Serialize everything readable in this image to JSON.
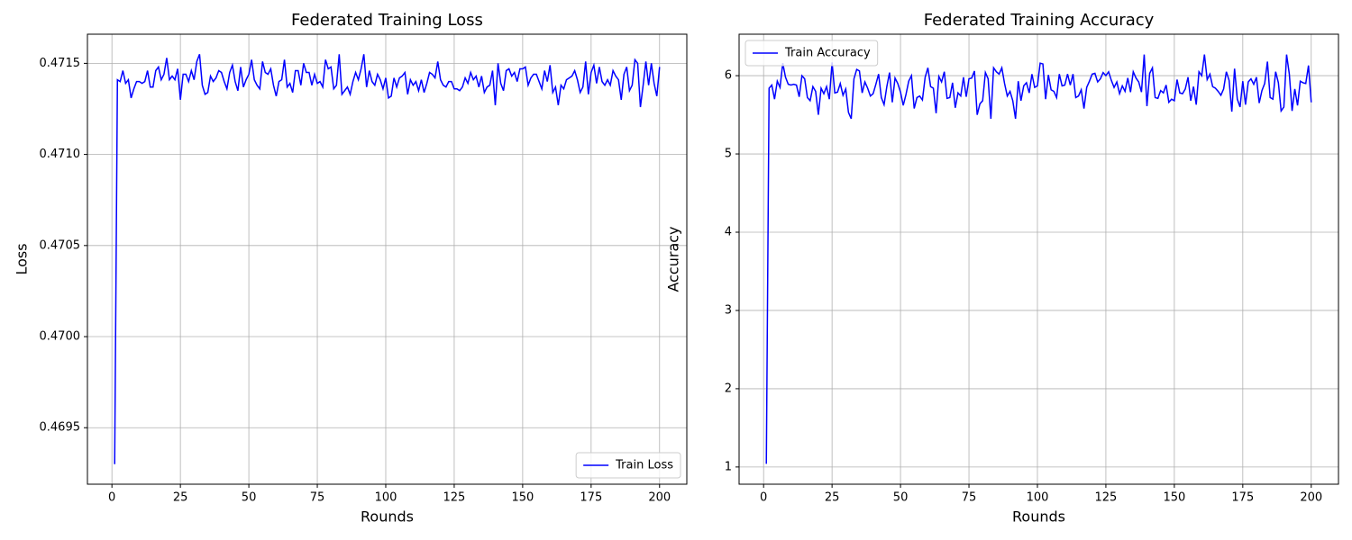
{
  "chart_data": [
    {
      "type": "line",
      "title": "Federated Training Loss",
      "x_label": "Rounds",
      "y_label": "Loss",
      "legend": "lower right",
      "grid": true,
      "xlim": [
        -8.95,
        209.95
      ],
      "xticks": [
        0,
        25,
        50,
        75,
        100,
        125,
        150,
        175,
        200
      ],
      "ylim": [
        0.46919,
        0.47166
      ],
      "yticks": [
        {
          "value": 0.4695,
          "label": "0.4695"
        },
        {
          "value": 0.47,
          "label": "0.4700"
        },
        {
          "value": 0.4705,
          "label": "0.4705"
        },
        {
          "value": 0.471,
          "label": "0.4710"
        },
        {
          "value": 0.4715,
          "label": "0.4715"
        }
      ],
      "x": [
        1,
        2,
        3,
        4,
        5,
        6,
        7,
        8,
        9,
        10,
        11,
        12,
        13,
        14,
        15,
        16,
        17,
        18,
        19,
        20,
        21,
        22,
        23,
        24,
        25,
        26,
        27,
        28,
        29,
        30,
        31,
        32,
        33,
        34,
        35,
        36,
        37,
        38,
        39,
        40,
        41,
        42,
        43,
        44,
        45,
        46,
        47,
        48,
        49,
        50,
        51,
        52,
        53,
        54,
        55,
        56,
        57,
        58,
        59,
        60,
        61,
        62,
        63,
        64,
        65,
        66,
        67,
        68,
        69,
        70,
        71,
        72,
        73,
        74,
        75,
        76,
        77,
        78,
        79,
        80,
        81,
        82,
        83,
        84,
        85,
        86,
        87,
        88,
        89,
        90,
        91,
        92,
        93,
        94,
        95,
        96,
        97,
        98,
        99,
        100,
        101,
        102,
        103,
        104,
        105,
        106,
        107,
        108,
        109,
        110,
        111,
        112,
        113,
        114,
        115,
        116,
        117,
        118,
        119,
        120,
        121,
        122,
        123,
        124,
        125,
        126,
        127,
        128,
        129,
        130,
        131,
        132,
        133,
        134,
        135,
        136,
        137,
        138,
        139,
        140,
        141,
        142,
        143,
        144,
        145,
        146,
        147,
        148,
        149,
        150,
        151,
        152,
        153,
        154,
        155,
        156,
        157,
        158,
        159,
        160,
        161,
        162,
        163,
        164,
        165,
        166,
        167,
        168,
        169,
        170,
        171,
        172,
        173,
        174,
        175,
        176,
        177,
        178,
        179,
        180,
        181,
        182,
        183,
        184,
        185,
        186,
        187,
        188,
        189,
        190,
        191,
        192,
        193,
        194,
        195,
        196,
        197,
        198,
        199,
        200
      ],
      "series": [
        {
          "name": "Train Loss",
          "color": "#0000ff",
          "values": [
            0.4693,
            0.47141,
            0.4714,
            0.47146,
            0.47139,
            0.47141,
            0.47131,
            0.47136,
            0.4714,
            0.4714,
            0.47139,
            0.4714,
            0.47146,
            0.47137,
            0.47137,
            0.47146,
            0.47148,
            0.47141,
            0.47144,
            0.47153,
            0.47141,
            0.47143,
            0.47141,
            0.47147,
            0.4713,
            0.47144,
            0.47144,
            0.4714,
            0.47146,
            0.47141,
            0.47151,
            0.47155,
            0.47138,
            0.47133,
            0.47134,
            0.47143,
            0.4714,
            0.47142,
            0.47146,
            0.47145,
            0.4714,
            0.47136,
            0.47145,
            0.47149,
            0.4714,
            0.47135,
            0.47148,
            0.47137,
            0.47141,
            0.47144,
            0.47152,
            0.47141,
            0.47138,
            0.47136,
            0.47151,
            0.47145,
            0.47144,
            0.47147,
            0.47138,
            0.47132,
            0.4714,
            0.47141,
            0.47152,
            0.47137,
            0.47139,
            0.47134,
            0.47146,
            0.47146,
            0.47138,
            0.4715,
            0.47145,
            0.47145,
            0.47138,
            0.47144,
            0.47139,
            0.4714,
            0.47137,
            0.47152,
            0.47147,
            0.47148,
            0.47136,
            0.47138,
            0.47155,
            0.47133,
            0.47135,
            0.47137,
            0.47133,
            0.4714,
            0.47145,
            0.47141,
            0.47147,
            0.47155,
            0.47137,
            0.47146,
            0.4714,
            0.47138,
            0.47144,
            0.47141,
            0.47136,
            0.47142,
            0.47131,
            0.47132,
            0.47142,
            0.47137,
            0.47142,
            0.47143,
            0.47145,
            0.47133,
            0.47141,
            0.47138,
            0.4714,
            0.47135,
            0.47141,
            0.47134,
            0.47139,
            0.47145,
            0.47144,
            0.47142,
            0.47151,
            0.47141,
            0.47138,
            0.47137,
            0.4714,
            0.4714,
            0.47136,
            0.47136,
            0.47135,
            0.47137,
            0.47142,
            0.47139,
            0.47145,
            0.47141,
            0.47143,
            0.47137,
            0.47143,
            0.47134,
            0.47137,
            0.47138,
            0.47146,
            0.47127,
            0.4715,
            0.47139,
            0.47135,
            0.47146,
            0.47147,
            0.47143,
            0.47145,
            0.4714,
            0.47147,
            0.47147,
            0.47148,
            0.47138,
            0.47142,
            0.47144,
            0.47144,
            0.4714,
            0.47136,
            0.47146,
            0.4714,
            0.47149,
            0.47134,
            0.47137,
            0.47127,
            0.47138,
            0.47136,
            0.47141,
            0.47142,
            0.47143,
            0.47146,
            0.47141,
            0.47134,
            0.47137,
            0.47151,
            0.47133,
            0.47145,
            0.47149,
            0.47139,
            0.47148,
            0.4714,
            0.47138,
            0.47141,
            0.47138,
            0.47146,
            0.47143,
            0.47141,
            0.4713,
            0.47144,
            0.47148,
            0.47135,
            0.47138,
            0.47152,
            0.4715,
            0.47126,
            0.47138,
            0.47151,
            0.47138,
            0.4715,
            0.47139,
            0.47132,
            0.47148
          ]
        }
      ]
    },
    {
      "type": "line",
      "title": "Federated Training Accuracy",
      "x_label": "Rounds",
      "y_label": "Accuracy",
      "legend": "upper left",
      "grid": true,
      "xlim": [
        -8.95,
        209.95
      ],
      "xticks": [
        0,
        25,
        50,
        75,
        100,
        125,
        150,
        175,
        200
      ],
      "ylim": [
        0.78,
        6.53
      ],
      "yticks": [
        1,
        2,
        3,
        4,
        5,
        6
      ],
      "x": [
        1,
        2,
        3,
        4,
        5,
        6,
        7,
        8,
        9,
        10,
        11,
        12,
        13,
        14,
        15,
        16,
        17,
        18,
        19,
        20,
        21,
        22,
        23,
        24,
        25,
        26,
        27,
        28,
        29,
        30,
        31,
        32,
        33,
        34,
        35,
        36,
        37,
        38,
        39,
        40,
        41,
        42,
        43,
        44,
        45,
        46,
        47,
        48,
        49,
        50,
        51,
        52,
        53,
        54,
        55,
        56,
        57,
        58,
        59,
        60,
        61,
        62,
        63,
        64,
        65,
        66,
        67,
        68,
        69,
        70,
        71,
        72,
        73,
        74,
        75,
        76,
        77,
        78,
        79,
        80,
        81,
        82,
        83,
        84,
        85,
        86,
        87,
        88,
        89,
        90,
        91,
        92,
        93,
        94,
        95,
        96,
        97,
        98,
        99,
        100,
        101,
        102,
        103,
        104,
        105,
        106,
        107,
        108,
        109,
        110,
        111,
        112,
        113,
        114,
        115,
        116,
        117,
        118,
        119,
        120,
        121,
        122,
        123,
        124,
        125,
        126,
        127,
        128,
        129,
        130,
        131,
        132,
        133,
        134,
        135,
        136,
        137,
        138,
        139,
        140,
        141,
        142,
        143,
        144,
        145,
        146,
        147,
        148,
        149,
        150,
        151,
        152,
        153,
        154,
        155,
        156,
        157,
        158,
        159,
        160,
        161,
        162,
        163,
        164,
        165,
        166,
        167,
        168,
        169,
        170,
        171,
        172,
        173,
        174,
        175,
        176,
        177,
        178,
        179,
        180,
        181,
        182,
        183,
        184,
        185,
        186,
        187,
        188,
        189,
        190,
        191,
        192,
        193,
        194,
        195,
        196,
        197,
        198,
        199,
        200
      ],
      "series": [
        {
          "name": "Train Accuracy",
          "color": "#0000ff",
          "values": [
            1.04,
            5.84,
            5.88,
            5.7,
            5.93,
            5.85,
            6.16,
            5.98,
            5.89,
            5.88,
            5.89,
            5.88,
            5.73,
            6.0,
            5.96,
            5.72,
            5.68,
            5.86,
            5.8,
            5.5,
            5.84,
            5.77,
            5.86,
            5.7,
            6.17,
            5.78,
            5.79,
            5.9,
            5.75,
            5.83,
            5.53,
            5.45,
            5.96,
            6.08,
            6.06,
            5.78,
            5.92,
            5.84,
            5.74,
            5.77,
            5.89,
            6.02,
            5.72,
            5.63,
            5.86,
            6.04,
            5.66,
            5.97,
            5.9,
            5.79,
            5.62,
            5.76,
            5.93,
            6.0,
            5.58,
            5.72,
            5.74,
            5.69,
            5.98,
            6.1,
            5.86,
            5.84,
            5.52,
            5.99,
            5.92,
            6.05,
            5.71,
            5.72,
            5.91,
            5.59,
            5.78,
            5.74,
            5.98,
            5.73,
            5.96,
            5.97,
            6.06,
            5.5,
            5.64,
            5.68,
            6.04,
            5.96,
            5.45,
            6.1,
            6.05,
            6.02,
            6.1,
            5.9,
            5.74,
            5.8,
            5.68,
            5.45,
            5.93,
            5.68,
            5.87,
            5.91,
            5.78,
            6.02,
            5.85,
            5.87,
            6.16,
            6.15,
            5.7,
            6.01,
            5.82,
            5.8,
            5.72,
            6.02,
            5.87,
            5.88,
            6.02,
            5.88,
            6.02,
            5.72,
            5.74,
            5.82,
            5.58,
            5.85,
            5.93,
            6.02,
            6.03,
            5.92,
            5.96,
            6.04,
            6.0,
            6.05,
            5.94,
            5.85,
            5.92,
            5.77,
            5.87,
            5.8,
            5.97,
            5.79,
            6.05,
            5.97,
            5.92,
            5.79,
            6.27,
            5.61,
            6.03,
            6.1,
            5.72,
            5.71,
            5.81,
            5.78,
            5.88,
            5.66,
            5.7,
            5.68,
            5.95,
            5.78,
            5.77,
            5.83,
            5.98,
            5.68,
            5.86,
            5.63,
            6.05,
            6.0,
            6.27,
            5.95,
            6.02,
            5.86,
            5.84,
            5.8,
            5.75,
            5.83,
            6.05,
            5.94,
            5.54,
            6.09,
            5.7,
            5.6,
            5.93,
            5.63,
            5.92,
            5.96,
            5.89,
            5.98,
            5.65,
            5.81,
            5.9,
            6.18,
            5.72,
            5.7,
            6.05,
            5.91,
            5.55,
            5.6,
            6.27,
            6.02,
            5.55,
            5.83,
            5.62,
            5.93,
            5.91,
            5.9,
            6.13,
            5.66
          ]
        }
      ]
    }
  ]
}
